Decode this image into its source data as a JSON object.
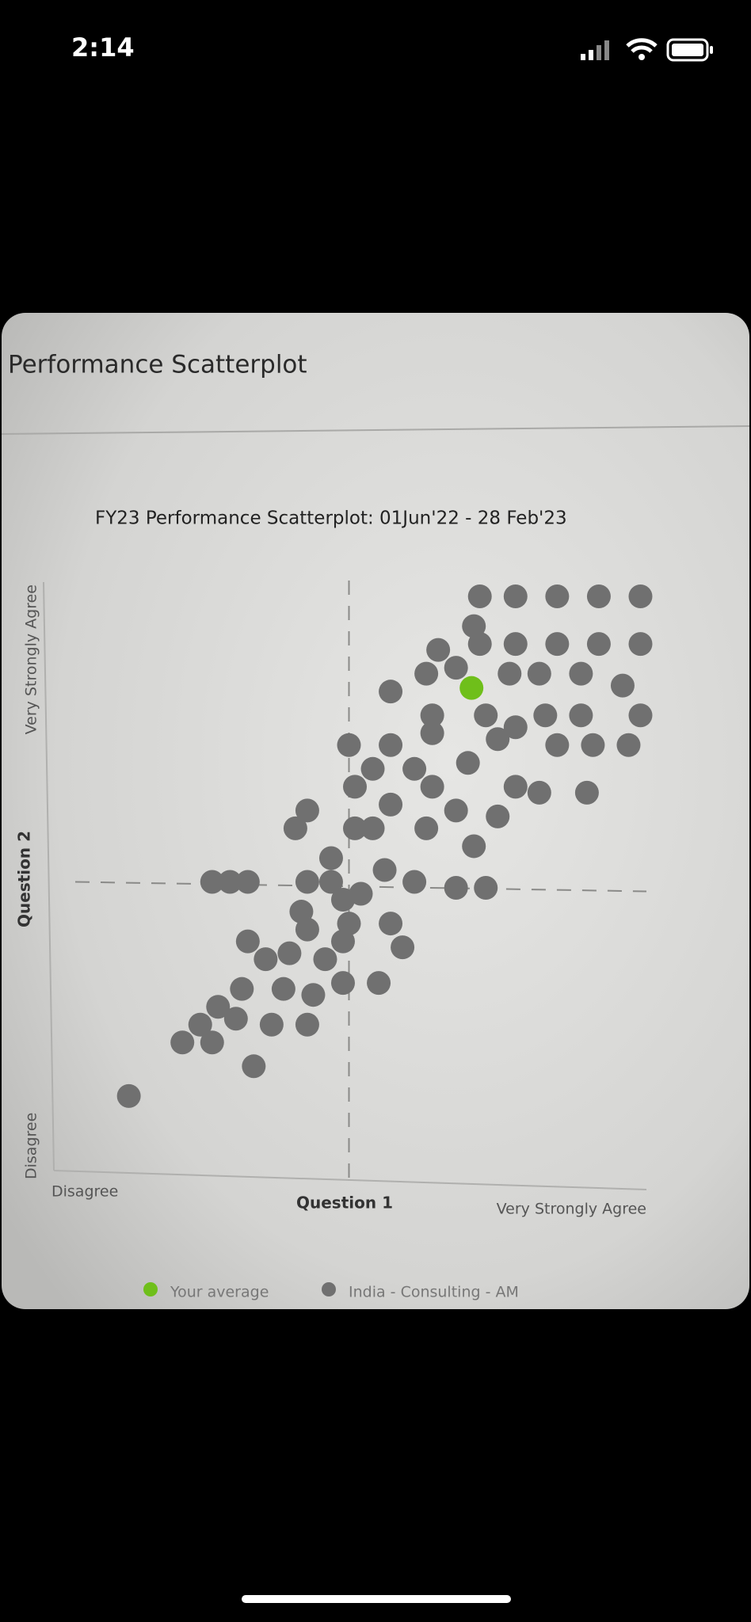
{
  "status_bar": {
    "time": "2:14"
  },
  "card": {
    "title": "Performance Scatterplot"
  },
  "chart_data": {
    "type": "scatter",
    "title": "FY23 Performance Scatterplot: 01Jun'22 - 28 Feb'23",
    "x_label": "Question 1",
    "y_label": "Question 2",
    "xlim": [
      0,
      10
    ],
    "ylim": [
      0,
      10
    ],
    "xticks": [
      {
        "value": 0,
        "label": "Disagree"
      },
      {
        "value": 10,
        "label": "Very Strongly Agree"
      }
    ],
    "yticks": [
      {
        "value": 0,
        "label": "Disagree"
      },
      {
        "value": 10,
        "label": "Very Strongly Agree"
      }
    ],
    "reference_lines": {
      "x": 5,
      "y": 5
    },
    "grid": false,
    "legend": "bottom",
    "series": [
      {
        "name": "India - Consulting - AM",
        "color": "#707070",
        "x": [
          1.3,
          2.2,
          2.5,
          2.7,
          2.8,
          3.1,
          3.4,
          3.2,
          3.7,
          4.3,
          3.9,
          4.4,
          4.9,
          5.5,
          3.3,
          3.6,
          4.0,
          4.3,
          4.2,
          4.6,
          4.9,
          5.9,
          5.7,
          5.0,
          2.7,
          3.0,
          3.3,
          4.3,
          4.7,
          4.1,
          4.3,
          5.1,
          5.1,
          5.7,
          6.3,
          6.8,
          7.3,
          6.1,
          5.6,
          7.1,
          7.5,
          6.4,
          7.0,
          7.8,
          8.2,
          9.0,
          5.0,
          5.7,
          6.4,
          7.5,
          8.5,
          9.1,
          9.7,
          5.7,
          6.3,
          6.4,
          6.5,
          6.8,
          7.3,
          7.8,
          8.3,
          8.9,
          9.9,
          7.2,
          7.1,
          7.2,
          7.8,
          8.5,
          9.2,
          9.9,
          7.8,
          8.5,
          9.2,
          9.9,
          8.2,
          8.9,
          9.6,
          7.7,
          5.4,
          5.4,
          6.1,
          6.8,
          4.7,
          4.9,
          5.2
        ],
        "values": [
          1.4,
          2.3,
          2.6,
          2.3,
          2.9,
          2.7,
          1.9,
          3.2,
          2.6,
          2.6,
          3.2,
          3.1,
          3.3,
          3.3,
          4.0,
          3.7,
          3.8,
          4.2,
          4.5,
          3.7,
          4.0,
          3.9,
          4.3,
          4.3,
          5.0,
          5.0,
          5.0,
          5.0,
          5.4,
          5.9,
          6.2,
          5.9,
          6.6,
          6.3,
          5.9,
          4.9,
          4.9,
          5.0,
          5.2,
          5.6,
          6.1,
          6.6,
          7.0,
          6.6,
          6.5,
          6.5,
          7.3,
          7.3,
          7.5,
          7.4,
          7.3,
          7.3,
          7.3,
          8.2,
          8.5,
          7.8,
          8.9,
          8.6,
          7.8,
          7.6,
          7.8,
          7.8,
          7.8,
          9.0,
          9.3,
          9.8,
          9.8,
          9.8,
          9.8,
          9.8,
          9.0,
          9.0,
          9.0,
          9.0,
          8.5,
          8.5,
          8.3,
          8.5,
          6.9,
          5.9,
          6.9,
          6.2,
          5.0,
          4.7,
          4.8
        ]
      },
      {
        "name": "Your average",
        "color": "#6fbf1a",
        "x": [
          7.06
        ],
        "values": [
          8.26
        ]
      }
    ]
  }
}
